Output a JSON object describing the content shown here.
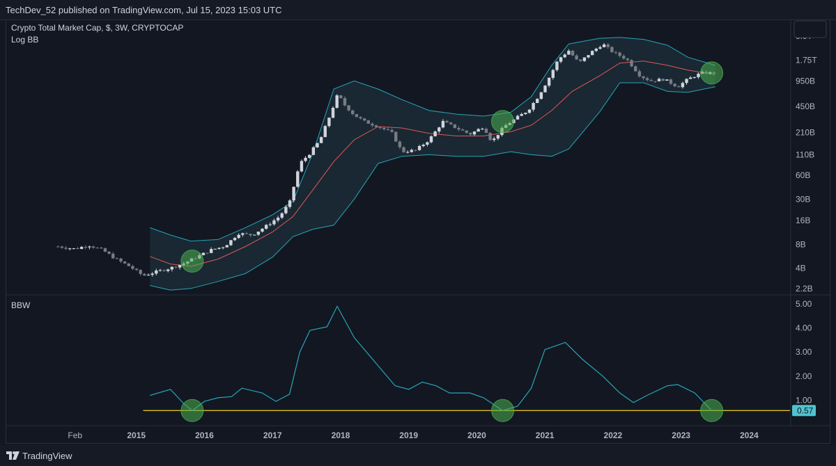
{
  "header": {
    "publisher": "TechDev_52 published on TradingView.com, Jul 15, 2023 15:03 UTC"
  },
  "footer": {
    "brand": "TradingView"
  },
  "chart_data": [
    {
      "type": "candlestick",
      "title": "Crypto Total Market Cap, $, 3W, CRYPTOCAP",
      "indicator": "Log BB",
      "scale": "log",
      "ylim": [
        1900000000.0,
        5500000000000.0
      ],
      "y_ticks": [
        {
          "label": "3.5T",
          "value": 3500000000000.0
        },
        {
          "label": "1.75T",
          "value": 1750000000000.0
        },
        {
          "label": "950B",
          "value": 950000000000.0
        },
        {
          "label": "450B",
          "value": 450000000000.0
        },
        {
          "label": "210B",
          "value": 210000000000.0
        },
        {
          "label": "110B",
          "value": 110000000000.0
        },
        {
          "label": "60B",
          "value": 60000000000.0
        },
        {
          "label": "30B",
          "value": 30000000000.0
        },
        {
          "label": "16B",
          "value": 16000000000.0
        },
        {
          "label": "8B",
          "value": 8000000000.0
        },
        {
          "label": "4B",
          "value": 4000000000.0
        },
        {
          "label": "2.2B",
          "value": 2200000000.0
        }
      ],
      "close_path": [
        [
          2013.85,
          7500000000.0
        ],
        [
          2014.1,
          7000000000.0
        ],
        [
          2014.3,
          7800000000.0
        ],
        [
          2014.5,
          6800000000.0
        ],
        [
          2014.7,
          5200000000.0
        ],
        [
          2014.9,
          4200000000.0
        ],
        [
          2015.1,
          3200000000.0
        ],
        [
          2015.3,
          3600000000.0
        ],
        [
          2015.5,
          4000000000.0
        ],
        [
          2015.7,
          4600000000.0
        ],
        [
          2015.9,
          5600000000.0
        ],
        [
          2016.1,
          6800000000.0
        ],
        [
          2016.3,
          7600000000.0
        ],
        [
          2016.5,
          11000000000.0
        ],
        [
          2016.7,
          10500000000.0
        ],
        [
          2016.9,
          13500000000.0
        ],
        [
          2017.1,
          18000000000.0
        ],
        [
          2017.25,
          27000000000.0
        ],
        [
          2017.4,
          85000000000.0
        ],
        [
          2017.55,
          115000000000.0
        ],
        [
          2017.7,
          170000000000.0
        ],
        [
          2017.85,
          360000000000.0
        ],
        [
          2017.96,
          650000000000.0
        ],
        [
          2018.05,
          480000000000.0
        ],
        [
          2018.2,
          350000000000.0
        ],
        [
          2018.35,
          290000000000.0
        ],
        [
          2018.55,
          250000000000.0
        ],
        [
          2018.75,
          210000000000.0
        ],
        [
          2018.9,
          120000000000.0
        ],
        [
          2019.1,
          125000000000.0
        ],
        [
          2019.3,
          170000000000.0
        ],
        [
          2019.5,
          290000000000.0
        ],
        [
          2019.7,
          240000000000.0
        ],
        [
          2019.9,
          200000000000.0
        ],
        [
          2020.1,
          250000000000.0
        ],
        [
          2020.22,
          160000000000.0
        ],
        [
          2020.4,
          250000000000.0
        ],
        [
          2020.6,
          330000000000.0
        ],
        [
          2020.75,
          400000000000.0
        ],
        [
          2020.9,
          600000000000.0
        ],
        [
          2021.05,
          1000000000000.0
        ],
        [
          2021.2,
          1800000000000.0
        ],
        [
          2021.35,
          2300000000000.0
        ],
        [
          2021.5,
          1600000000000.0
        ],
        [
          2021.65,
          2100000000000.0
        ],
        [
          2021.85,
          2800000000000.0
        ],
        [
          2022.0,
          2200000000000.0
        ],
        [
          2022.2,
          1800000000000.0
        ],
        [
          2022.4,
          1100000000000.0
        ],
        [
          2022.55,
          950000000000.0
        ],
        [
          2022.75,
          1000000000000.0
        ],
        [
          2022.95,
          800000000000.0
        ],
        [
          2023.1,
          1000000000000.0
        ],
        [
          2023.3,
          1200000000000.0
        ],
        [
          2023.5,
          1200000000000.0
        ]
      ],
      "bb_mid": [
        [
          2015.2,
          5600000000.0
        ],
        [
          2015.5,
          4500000000.0
        ],
        [
          2015.8,
          4200000000.0
        ],
        [
          2016.2,
          5200000000.0
        ],
        [
          2016.6,
          7500000000.0
        ],
        [
          2017.0,
          11500000000.0
        ],
        [
          2017.3,
          18000000000.0
        ],
        [
          2017.6,
          40000000000.0
        ],
        [
          2017.9,
          90000000000.0
        ],
        [
          2018.2,
          170000000000.0
        ],
        [
          2018.55,
          250000000000.0
        ],
        [
          2018.9,
          240000000000.0
        ],
        [
          2019.3,
          205000000000.0
        ],
        [
          2019.7,
          190000000000.0
        ],
        [
          2020.1,
          190000000000.0
        ],
        [
          2020.5,
          215000000000.0
        ],
        [
          2020.8,
          260000000000.0
        ],
        [
          2021.1,
          400000000000.0
        ],
        [
          2021.4,
          700000000000.0
        ],
        [
          2021.8,
          1100000000000.0
        ],
        [
          2022.1,
          1600000000000.0
        ],
        [
          2022.45,
          1700000000000.0
        ],
        [
          2022.8,
          1500000000000.0
        ],
        [
          2023.1,
          1300000000000.0
        ],
        [
          2023.5,
          1150000000000.0
        ]
      ],
      "bb_upper": [
        [
          2015.2,
          13000000000.0
        ],
        [
          2015.5,
          10500000000.0
        ],
        [
          2015.8,
          8800000000.0
        ],
        [
          2016.2,
          9200000000.0
        ],
        [
          2016.6,
          13000000000.0
        ],
        [
          2017.0,
          19000000000.0
        ],
        [
          2017.3,
          28000000000.0
        ],
        [
          2017.6,
          120000000000.0
        ],
        [
          2017.9,
          750000000000.0
        ],
        [
          2018.2,
          950000000000.0
        ],
        [
          2018.55,
          750000000000.0
        ],
        [
          2018.9,
          550000000000.0
        ],
        [
          2019.3,
          400000000000.0
        ],
        [
          2019.7,
          360000000000.0
        ],
        [
          2020.1,
          340000000000.0
        ],
        [
          2020.5,
          380000000000.0
        ],
        [
          2020.8,
          600000000000.0
        ],
        [
          2021.1,
          1500000000000.0
        ],
        [
          2021.35,
          2800000000000.0
        ],
        [
          2021.8,
          3300000000000.0
        ],
        [
          2022.1,
          3400000000000.0
        ],
        [
          2022.45,
          3200000000000.0
        ],
        [
          2022.8,
          2700000000000.0
        ],
        [
          2023.1,
          1900000000000.0
        ],
        [
          2023.5,
          1500000000000.0
        ]
      ],
      "bb_lower": [
        [
          2015.2,
          2400000000.0
        ],
        [
          2015.5,
          2100000000.0
        ],
        [
          2015.8,
          2200000000.0
        ],
        [
          2016.2,
          2700000000.0
        ],
        [
          2016.6,
          3400000000.0
        ],
        [
          2017.0,
          5500000000.0
        ],
        [
          2017.3,
          10000000000.0
        ],
        [
          2017.6,
          12500000000.0
        ],
        [
          2017.9,
          14000000000.0
        ],
        [
          2018.2,
          30000000000.0
        ],
        [
          2018.55,
          85000000000.0
        ],
        [
          2018.9,
          105000000000.0
        ],
        [
          2019.3,
          110000000000.0
        ],
        [
          2019.7,
          105000000000.0
        ],
        [
          2020.1,
          105000000000.0
        ],
        [
          2020.5,
          120000000000.0
        ],
        [
          2020.8,
          110000000000.0
        ],
        [
          2021.1,
          105000000000.0
        ],
        [
          2021.35,
          130000000000.0
        ],
        [
          2021.8,
          380000000000.0
        ],
        [
          2022.1,
          900000000000.0
        ],
        [
          2022.45,
          900000000000.0
        ],
        [
          2022.8,
          700000000000.0
        ],
        [
          2023.1,
          680000000000.0
        ],
        [
          2023.5,
          800000000000.0
        ]
      ],
      "highlights": [
        2015.82,
        2020.38,
        2023.45
      ],
      "colors": {
        "bb_mid": "#e45756",
        "bb_band": "#26a6b7",
        "candle": "#b2b5be",
        "highlight": "#4caf50"
      }
    },
    {
      "type": "line",
      "title": "BBW",
      "ylim": [
        0,
        5.2
      ],
      "y_ticks": [
        {
          "label": "5.00",
          "value": 5
        },
        {
          "label": "4.00",
          "value": 4
        },
        {
          "label": "3.00",
          "value": 3
        },
        {
          "label": "2.00",
          "value": 2
        },
        {
          "label": "1.00",
          "value": 1
        }
      ],
      "threshold": 0.57,
      "threshold_label": "0.57",
      "values": [
        [
          2015.2,
          1.2
        ],
        [
          2015.5,
          1.45
        ],
        [
          2015.7,
          0.85
        ],
        [
          2015.82,
          0.57
        ],
        [
          2016.0,
          0.95
        ],
        [
          2016.2,
          1.1
        ],
        [
          2016.4,
          1.15
        ],
        [
          2016.55,
          1.5
        ],
        [
          2016.85,
          1.3
        ],
        [
          2017.05,
          0.95
        ],
        [
          2017.25,
          1.25
        ],
        [
          2017.4,
          3.0
        ],
        [
          2017.55,
          3.9
        ],
        [
          2017.8,
          4.05
        ],
        [
          2017.95,
          4.9
        ],
        [
          2018.2,
          3.6
        ],
        [
          2018.5,
          2.6
        ],
        [
          2018.8,
          1.6
        ],
        [
          2019.0,
          1.45
        ],
        [
          2019.2,
          1.75
        ],
        [
          2019.4,
          1.6
        ],
        [
          2019.6,
          1.3
        ],
        [
          2019.9,
          1.3
        ],
        [
          2020.1,
          1.1
        ],
        [
          2020.38,
          0.57
        ],
        [
          2020.6,
          0.75
        ],
        [
          2020.8,
          1.5
        ],
        [
          2021.0,
          3.1
        ],
        [
          2021.3,
          3.4
        ],
        [
          2021.55,
          2.7
        ],
        [
          2021.85,
          2.0
        ],
        [
          2022.1,
          1.3
        ],
        [
          2022.3,
          0.9
        ],
        [
          2022.5,
          1.2
        ],
        [
          2022.8,
          1.6
        ],
        [
          2022.95,
          1.65
        ],
        [
          2023.2,
          1.3
        ],
        [
          2023.45,
          0.57
        ]
      ],
      "highlights": [
        2015.82,
        2020.38,
        2023.45
      ],
      "colors": {
        "line": "#26a6b7",
        "threshold": "#f2d21e",
        "threshold_label_bg": "#4fc3cf"
      }
    }
  ],
  "x_axis": {
    "labels": [
      {
        "label": "Feb",
        "value": 2014.1
      },
      {
        "label": "2015",
        "value": 2015.0
      },
      {
        "label": "2016",
        "value": 2016.0
      },
      {
        "label": "2017",
        "value": 2017.0
      },
      {
        "label": "2018",
        "value": 2018.0
      },
      {
        "label": "2019",
        "value": 2019.0
      },
      {
        "label": "2020",
        "value": 2020.0
      },
      {
        "label": "2021",
        "value": 2021.0
      },
      {
        "label": "2022",
        "value": 2022.0
      },
      {
        "label": "2023",
        "value": 2023.0
      },
      {
        "label": "2024",
        "value": 2024.0
      }
    ],
    "range": [
      2013.1,
      2024.6
    ]
  }
}
